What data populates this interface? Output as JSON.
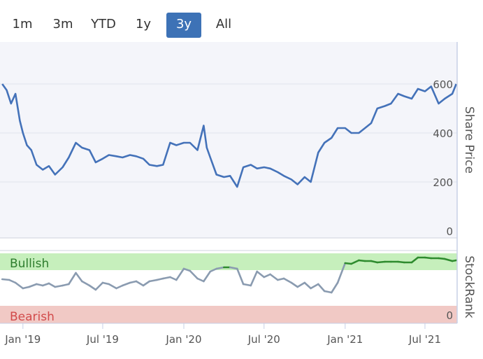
{
  "range_selector": {
    "buttons": [
      {
        "label": "1m"
      },
      {
        "label": "3m"
      },
      {
        "label": "YTD"
      },
      {
        "label": "1y"
      },
      {
        "label": "3y"
      },
      {
        "label": "All"
      }
    ],
    "active": "3y"
  },
  "colors": {
    "price_line": "#4472b9",
    "bullish_band": "#c6efbc",
    "bearish_band": "#f1c9c5",
    "bullish_line": "#2e8b2e",
    "neutral_line": "#8a9bb0",
    "bullish_text": "#2e7d2e",
    "bearish_text": "#d24a4a",
    "plot_bg": "#f4f5fa"
  },
  "chart_data": [
    {
      "type": "line",
      "ylabel": "Share Price",
      "ylim": [
        0,
        650
      ],
      "yticks": [
        "0",
        "200",
        "400",
        "600"
      ],
      "series": [
        {
          "x": [
            "2018-11-15",
            "2018-11-25",
            "2018-12-05",
            "2018-12-15",
            "2018-12-25",
            "2019-01-01",
            "2019-01-10",
            "2019-01-20",
            "2019-02-01",
            "2019-02-15",
            "2019-03-01",
            "2019-03-15",
            "2019-04-01",
            "2019-04-15",
            "2019-05-01",
            "2019-05-15",
            "2019-06-01",
            "2019-06-15",
            "2019-07-01",
            "2019-07-15",
            "2019-08-01",
            "2019-08-15",
            "2019-09-01",
            "2019-09-15",
            "2019-10-01",
            "2019-10-15",
            "2019-11-01",
            "2019-11-15",
            "2019-12-01",
            "2019-12-15",
            "2020-01-01",
            "2020-01-15",
            "2020-02-01",
            "2020-02-15",
            "2020-02-22",
            "2020-03-01",
            "2020-03-15",
            "2020-04-01",
            "2020-04-15",
            "2020-05-01",
            "2020-05-15",
            "2020-06-01",
            "2020-06-15",
            "2020-07-01",
            "2020-07-15",
            "2020-08-01",
            "2020-08-15",
            "2020-09-01",
            "2020-09-15",
            "2020-10-01",
            "2020-10-15",
            "2020-11-01",
            "2020-11-15",
            "2020-12-01",
            "2020-12-15",
            "2021-01-01",
            "2021-01-15",
            "2021-02-01",
            "2021-02-15",
            "2021-03-01",
            "2021-03-15",
            "2021-04-01",
            "2021-04-15",
            "2021-05-01",
            "2021-05-15",
            "2021-06-01",
            "2021-06-15",
            "2021-07-01",
            "2021-07-15",
            "2021-08-01",
            "2021-08-15",
            "2021-09-01",
            "2021-09-10"
          ],
          "values": [
            600,
            575,
            520,
            560,
            450,
            400,
            350,
            330,
            270,
            250,
            265,
            230,
            260,
            300,
            360,
            340,
            330,
            280,
            295,
            310,
            305,
            300,
            310,
            305,
            295,
            270,
            265,
            270,
            360,
            350,
            360,
            360,
            330,
            430,
            340,
            300,
            230,
            220,
            225,
            180,
            260,
            270,
            255,
            260,
            255,
            240,
            225,
            210,
            190,
            220,
            200,
            320,
            360,
            380,
            420,
            420,
            400,
            400,
            420,
            440,
            500,
            510,
            520,
            560,
            550,
            540,
            580,
            570,
            590,
            520,
            540,
            560,
            600
          ]
        }
      ]
    },
    {
      "type": "line",
      "ylabel": "StockRank",
      "ylim": [
        0,
        100
      ],
      "yticks": [
        "0"
      ],
      "bands": [
        {
          "label": "Bullish",
          "from": 80,
          "to": 100
        },
        {
          "label": "Bearish",
          "from": 0,
          "to": 10
        }
      ],
      "xticks": [
        "Jan '19",
        "Jul '19",
        "Jan '20",
        "Jul '20",
        "Jan '21",
        "Jul '21"
      ],
      "series": [
        {
          "x": [
            "2018-11-15",
            "2018-12-01",
            "2018-12-15",
            "2019-01-01",
            "2019-01-15",
            "2019-02-01",
            "2019-02-15",
            "2019-03-01",
            "2019-03-15",
            "2019-04-01",
            "2019-04-15",
            "2019-05-01",
            "2019-05-15",
            "2019-06-01",
            "2019-06-15",
            "2019-07-01",
            "2019-07-15",
            "2019-08-01",
            "2019-08-15",
            "2019-09-01",
            "2019-09-15",
            "2019-10-01",
            "2019-10-15",
            "2019-11-01",
            "2019-11-15",
            "2019-12-01",
            "2019-12-15",
            "2020-01-01",
            "2020-01-15",
            "2020-02-01",
            "2020-02-15",
            "2020-03-01",
            "2020-03-15",
            "2020-04-01",
            "2020-04-15",
            "2020-05-01",
            "2020-05-15",
            "2020-06-01",
            "2020-06-15",
            "2020-07-01",
            "2020-07-15",
            "2020-08-01",
            "2020-08-15",
            "2020-09-01",
            "2020-09-15",
            "2020-10-01",
            "2020-10-15",
            "2020-11-01",
            "2020-11-15",
            "2020-12-01",
            "2020-12-15",
            "2021-01-01",
            "2021-01-15",
            "2021-02-01",
            "2021-02-15",
            "2021-03-01",
            "2021-03-15",
            "2021-04-01",
            "2021-04-15",
            "2021-05-01",
            "2021-05-15",
            "2021-06-01",
            "2021-06-15",
            "2021-07-01",
            "2021-07-15",
            "2021-08-01",
            "2021-08-15",
            "2021-09-01",
            "2021-09-10"
          ],
          "values": [
            63,
            62,
            58,
            50,
            52,
            56,
            54,
            57,
            52,
            54,
            56,
            72,
            60,
            54,
            48,
            58,
            56,
            50,
            54,
            58,
            60,
            54,
            60,
            62,
            64,
            66,
            62,
            78,
            75,
            64,
            60,
            74,
            78,
            80,
            80,
            78,
            56,
            54,
            74,
            66,
            70,
            62,
            64,
            58,
            52,
            58,
            50,
            56,
            46,
            44,
            58,
            86,
            85,
            90,
            89,
            89,
            87,
            88,
            88,
            88,
            87,
            87,
            94,
            94,
            93,
            93,
            92,
            89,
            90
          ],
          "bullish_threshold": 80
        }
      ]
    }
  ]
}
